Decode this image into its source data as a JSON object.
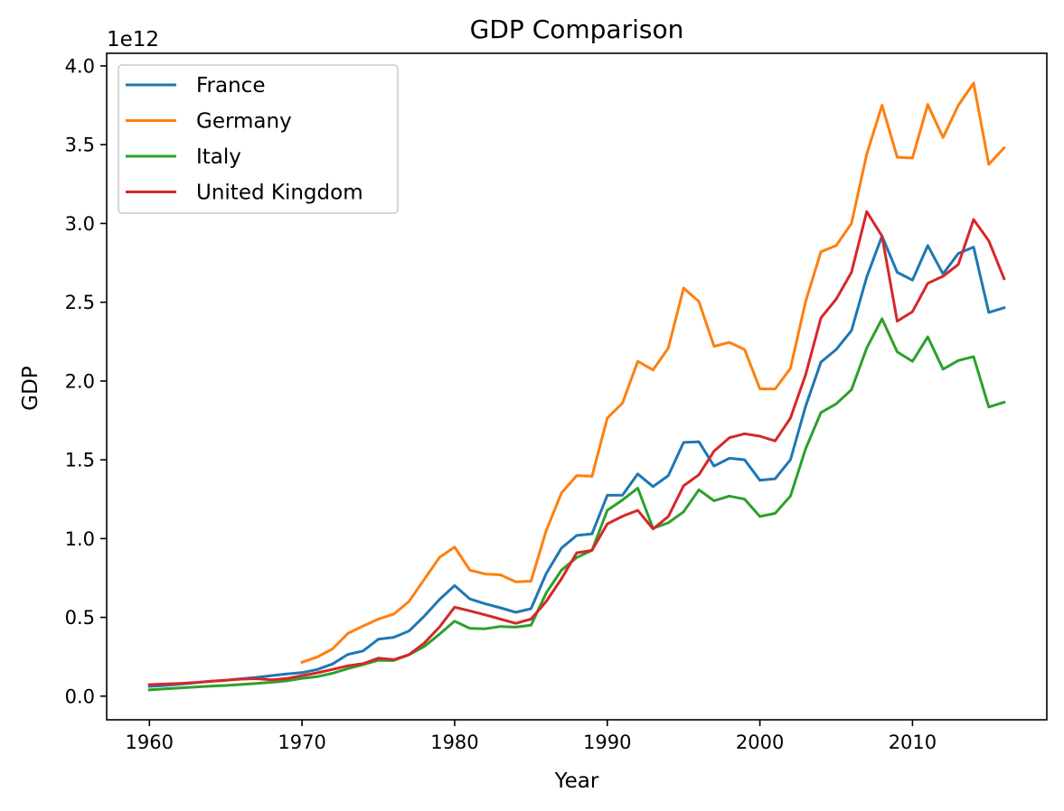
{
  "chart_data": {
    "type": "line",
    "title": "GDP Comparison",
    "xlabel": "Year",
    "ylabel": "GDP",
    "y_offset_label": "1e12",
    "y_scale_multiplier": 1000000000000.0,
    "xlim": [
      1957.2,
      2018.8
    ],
    "ylim": [
      -0.15,
      4.08
    ],
    "x_ticks": [
      "1960",
      "1970",
      "1980",
      "1990",
      "2000",
      "2010"
    ],
    "y_ticks": [
      "0.0",
      "0.5",
      "1.0",
      "1.5",
      "2.0",
      "2.5",
      "3.0",
      "3.5",
      "4.0"
    ],
    "grid": false,
    "legend_position": "upper-left",
    "series": [
      {
        "name": "France",
        "color": "#1f77b4",
        "x": [
          1960,
          1961,
          1962,
          1963,
          1964,
          1965,
          1966,
          1967,
          1968,
          1969,
          1970,
          1971,
          1972,
          1973,
          1974,
          1975,
          1976,
          1977,
          1978,
          1979,
          1980,
          1981,
          1982,
          1983,
          1984,
          1985,
          1986,
          1987,
          1988,
          1989,
          1990,
          1991,
          1992,
          1993,
          1994,
          1995,
          1996,
          1997,
          1998,
          1999,
          2000,
          2001,
          2002,
          2003,
          2004,
          2005,
          2006,
          2007,
          2008,
          2009,
          2010,
          2011,
          2012,
          2013,
          2014,
          2015,
          2016
        ],
        "values": [
          0.062,
          0.068,
          0.076,
          0.085,
          0.094,
          0.101,
          0.11,
          0.119,
          0.13,
          0.141,
          0.149,
          0.169,
          0.204,
          0.265,
          0.287,
          0.361,
          0.373,
          0.413,
          0.507,
          0.613,
          0.702,
          0.617,
          0.586,
          0.561,
          0.532,
          0.555,
          0.778,
          0.94,
          1.02,
          1.03,
          1.275,
          1.276,
          1.41,
          1.33,
          1.4,
          1.61,
          1.615,
          1.46,
          1.51,
          1.5,
          1.37,
          1.38,
          1.5,
          1.84,
          2.12,
          2.2,
          2.32,
          2.66,
          2.92,
          2.69,
          2.64,
          2.86,
          2.68,
          2.81,
          2.85,
          2.435,
          2.465
        ]
      },
      {
        "name": "Germany",
        "color": "#ff7f0e",
        "x": [
          1970,
          1971,
          1972,
          1973,
          1974,
          1975,
          1976,
          1977,
          1978,
          1979,
          1980,
          1981,
          1982,
          1983,
          1984,
          1985,
          1986,
          1987,
          1988,
          1989,
          1990,
          1991,
          1992,
          1993,
          1994,
          1995,
          1996,
          1997,
          1998,
          1999,
          2000,
          2001,
          2002,
          2003,
          2004,
          2005,
          2006,
          2007,
          2008,
          2009,
          2010,
          2011,
          2012,
          2013,
          2014,
          2015,
          2016
        ],
        "values": [
          0.215,
          0.249,
          0.3,
          0.398,
          0.445,
          0.489,
          0.52,
          0.6,
          0.74,
          0.88,
          0.946,
          0.8,
          0.775,
          0.77,
          0.725,
          0.73,
          1.05,
          1.29,
          1.4,
          1.395,
          1.765,
          1.86,
          2.125,
          2.07,
          2.21,
          2.59,
          2.505,
          2.22,
          2.245,
          2.2,
          1.95,
          1.95,
          2.08,
          2.505,
          2.82,
          2.86,
          3.0,
          3.44,
          3.75,
          3.42,
          3.415,
          3.755,
          3.545,
          3.75,
          3.89,
          3.375,
          3.48
        ]
      },
      {
        "name": "Italy",
        "color": "#2ca02c",
        "x": [
          1960,
          1961,
          1962,
          1963,
          1964,
          1965,
          1966,
          1967,
          1968,
          1969,
          1970,
          1971,
          1972,
          1973,
          1974,
          1975,
          1976,
          1977,
          1978,
          1979,
          1980,
          1981,
          1982,
          1983,
          1984,
          1985,
          1986,
          1987,
          1988,
          1989,
          1990,
          1991,
          1992,
          1993,
          1994,
          1995,
          1996,
          1997,
          1998,
          1999,
          2000,
          2001,
          2002,
          2003,
          2004,
          2005,
          2006,
          2007,
          2008,
          2009,
          2010,
          2011,
          2012,
          2013,
          2014,
          2015,
          2016
        ],
        "values": [
          0.04,
          0.046,
          0.052,
          0.058,
          0.064,
          0.068,
          0.074,
          0.081,
          0.088,
          0.097,
          0.113,
          0.124,
          0.145,
          0.175,
          0.2,
          0.228,
          0.226,
          0.262,
          0.315,
          0.393,
          0.476,
          0.43,
          0.428,
          0.442,
          0.438,
          0.45,
          0.655,
          0.8,
          0.88,
          0.925,
          1.18,
          1.245,
          1.32,
          1.065,
          1.1,
          1.17,
          1.31,
          1.24,
          1.27,
          1.25,
          1.14,
          1.16,
          1.27,
          1.57,
          1.8,
          1.855,
          1.945,
          2.21,
          2.395,
          2.185,
          2.125,
          2.28,
          2.075,
          2.13,
          2.155,
          1.835,
          1.865
        ]
      },
      {
        "name": "United Kingdom",
        "color": "#d62728",
        "x": [
          1960,
          1961,
          1962,
          1963,
          1964,
          1965,
          1966,
          1967,
          1968,
          1969,
          1970,
          1971,
          1972,
          1973,
          1974,
          1975,
          1976,
          1977,
          1978,
          1979,
          1980,
          1981,
          1982,
          1983,
          1984,
          1985,
          1986,
          1987,
          1988,
          1989,
          1990,
          1991,
          1992,
          1993,
          1994,
          1995,
          1996,
          1997,
          1998,
          1999,
          2000,
          2001,
          2002,
          2003,
          2004,
          2005,
          2006,
          2007,
          2008,
          2009,
          2010,
          2011,
          2012,
          2013,
          2014,
          2015,
          2016
        ],
        "values": [
          0.073,
          0.077,
          0.081,
          0.086,
          0.094,
          0.101,
          0.108,
          0.111,
          0.104,
          0.112,
          0.13,
          0.148,
          0.17,
          0.193,
          0.206,
          0.241,
          0.232,
          0.263,
          0.336,
          0.438,
          0.565,
          0.541,
          0.516,
          0.489,
          0.462,
          0.489,
          0.601,
          0.745,
          0.91,
          0.926,
          1.093,
          1.142,
          1.179,
          1.061,
          1.14,
          1.335,
          1.405,
          1.555,
          1.64,
          1.665,
          1.65,
          1.62,
          1.765,
          2.04,
          2.4,
          2.52,
          2.69,
          3.075,
          2.92,
          2.38,
          2.44,
          2.62,
          2.665,
          2.74,
          3.025,
          2.89,
          2.65
        ]
      }
    ]
  }
}
